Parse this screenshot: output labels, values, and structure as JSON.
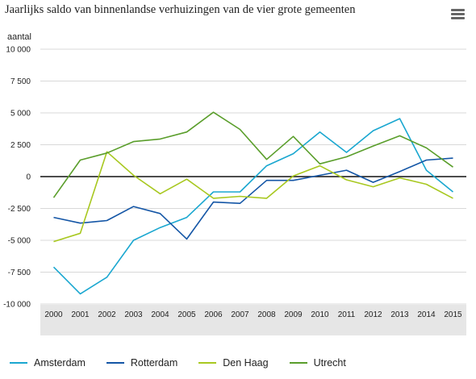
{
  "title": "Jaarlijks saldo van binnenlandse verhuizingen van de vier grote gemeenten",
  "menu_icon": "hamburger-menu-icon",
  "chart_data": {
    "type": "line",
    "ylabel": "aantal",
    "xlabel": "",
    "ylim": [
      -10000,
      10000
    ],
    "yticks": [
      10000,
      7500,
      5000,
      2500,
      0,
      -2500,
      -5000,
      -7500,
      -10000
    ],
    "ytick_labels": [
      "10 000",
      "7 500",
      "5 000",
      "2 500",
      "0",
      "-2 500",
      "-5 000",
      "-7 500",
      "-10 000"
    ],
    "x": [
      "2000",
      "2001",
      "2002",
      "2003",
      "2004",
      "2005",
      "2006",
      "2007",
      "2008",
      "2009",
      "2010",
      "2011",
      "2012",
      "2013",
      "2014",
      "2015"
    ],
    "grid": true,
    "legend_position": "bottom",
    "series": [
      {
        "name": "Amsterdam",
        "color": "#1aa7d0",
        "values": [
          -7100,
          -9200,
          -7900,
          -5000,
          -4000,
          -3200,
          -1200,
          -1200,
          850,
          1800,
          3500,
          1900,
          3600,
          4550,
          500,
          -1200
        ]
      },
      {
        "name": "Rotterdam",
        "color": "#1456a6",
        "values": [
          -3200,
          -3650,
          -3450,
          -2350,
          -2900,
          -4900,
          -2000,
          -2100,
          -300,
          -300,
          100,
          500,
          -450,
          400,
          1300,
          1450
        ]
      },
      {
        "name": "Den Haag",
        "color": "#a8c820",
        "values": [
          -5100,
          -4450,
          1950,
          100,
          -1350,
          -200,
          -1700,
          -1550,
          -1700,
          50,
          850,
          -250,
          -800,
          -100,
          -600,
          -1700
        ]
      },
      {
        "name": "Utrecht",
        "color": "#5a9e2b",
        "values": [
          -1650,
          1300,
          1850,
          2750,
          2950,
          3500,
          5050,
          3700,
          1350,
          3150,
          1000,
          1550,
          2400,
          3200,
          2250,
          750
        ]
      }
    ]
  }
}
